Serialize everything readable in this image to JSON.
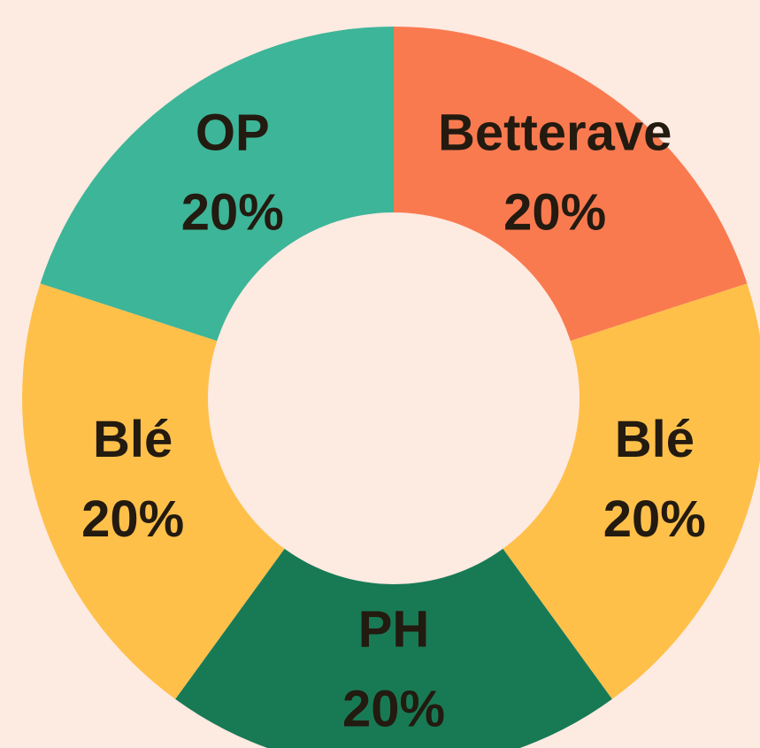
{
  "chart_data": {
    "type": "donut",
    "categories": [
      "Betterave",
      "Blé",
      "PH",
      "Blé",
      "OP"
    ],
    "values": [
      20,
      20,
      20,
      20,
      20
    ],
    "value_labels": [
      "20%",
      "20%",
      "20%",
      "20%",
      "20%"
    ],
    "colors": [
      "#fa7a50",
      "#ffc04a",
      "#187a55",
      "#ffc04a",
      "#3db598"
    ]
  }
}
